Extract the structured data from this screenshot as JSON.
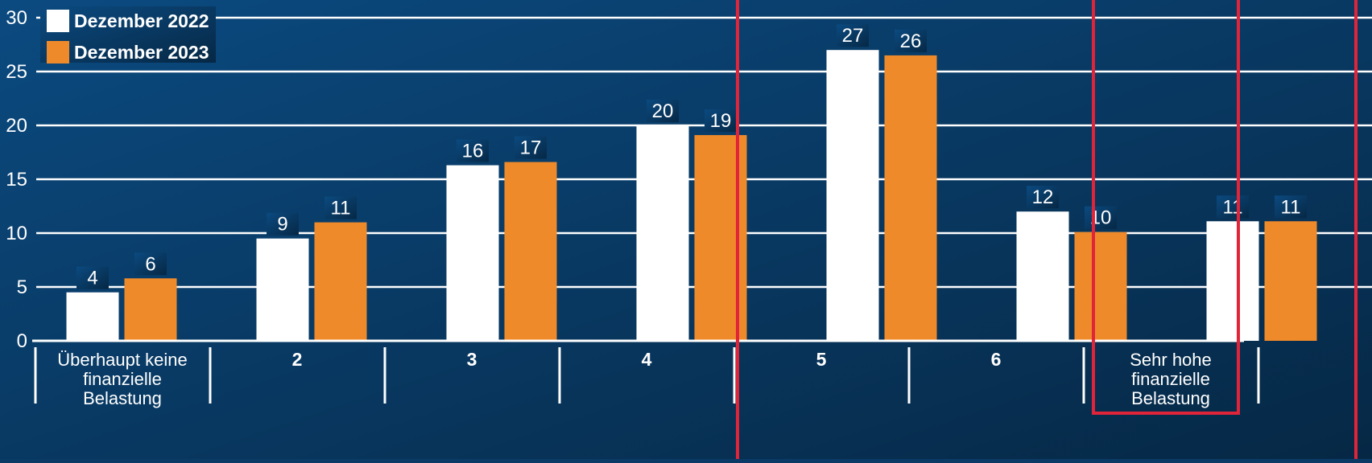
{
  "chart_data": {
    "type": "bar",
    "categories": [
      [
        "Überhaupt keine",
        "finanzielle",
        "Belastung"
      ],
      [
        "2"
      ],
      [
        "3"
      ],
      [
        "4"
      ],
      [
        "5"
      ],
      [
        "6"
      ],
      [
        "Sehr hohe",
        "finanzielle",
        "Belastung"
      ]
    ],
    "series": [
      {
        "name": "Dezember 2022",
        "values": [
          4.5,
          9.5,
          16.3,
          20,
          27,
          12,
          11.1
        ],
        "labels": [
          "4",
          "9",
          "16",
          "20",
          "27",
          "12",
          "11"
        ],
        "color": "#ffffff"
      },
      {
        "name": "Dezember 2023",
        "values": [
          5.8,
          11,
          16.6,
          19.1,
          26.5,
          10.1,
          11.1
        ],
        "labels": [
          "6",
          "11",
          "17",
          "19",
          "26",
          "10",
          "11"
        ],
        "color": "#ef8a2a"
      }
    ],
    "yticks": [
      "0",
      "5",
      "10",
      "15",
      "20",
      "25",
      "30"
    ],
    "ylim": [
      0,
      30
    ],
    "grid": true,
    "legend_position": "top-left",
    "highlighted_categories": [
      4,
      6
    ],
    "highlight_color": "#e0243a",
    "background_colors": [
      "#0b4a80",
      "#062845"
    ]
  }
}
